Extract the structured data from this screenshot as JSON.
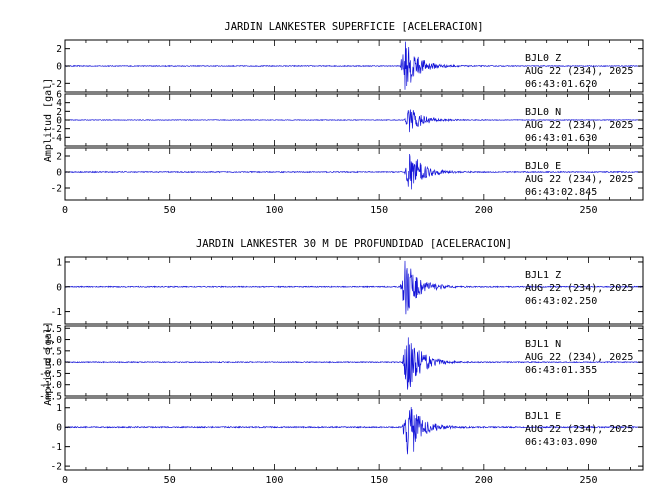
{
  "trace_color": "#1414d8",
  "chart_data": [
    {
      "type": "line",
      "title": "JARDIN LANKESTER SUPERFICIE [ACELERACION]",
      "ylabel": "Amplitud [gal]",
      "xlabel": "",
      "xlim": [
        0,
        276
      ],
      "xticks": [
        "0",
        "50",
        "100",
        "150",
        "200",
        "250"
      ],
      "series": [
        {
          "name": "BJL0  Z",
          "date": "AUG 22 (234), 2025",
          "time": "06:43:01.620",
          "ylim": [
            -3,
            3
          ],
          "yticks": [
            "2",
            "0",
            "-2"
          ],
          "onset_s": 160,
          "peak_gal": 2.9,
          "noise_gal": 0.05
        },
        {
          "name": "BJL0  N",
          "date": "AUG 22 (234), 2025",
          "time": "06:43:01.630",
          "ylim": [
            -6,
            6
          ],
          "yticks": [
            "6",
            "4",
            "2",
            "0",
            "-2",
            "-4"
          ],
          "onset_s": 162,
          "peak_gal": 3.0,
          "noise_gal": 0.08
        },
        {
          "name": "BJL0  E",
          "date": "AUG 22 (234), 2025",
          "time": "06:43:02.845",
          "ylim": [
            -3.5,
            3
          ],
          "yticks": [
            "2",
            "0",
            "-2"
          ],
          "onset_s": 162,
          "peak_gal": 2.6,
          "noise_gal": 0.06
        }
      ]
    },
    {
      "type": "line",
      "title": "JARDIN LANKESTER 30 M DE PROFUNDIDAD [ACELERACION]",
      "ylabel": "Amplitud [gal]",
      "xlabel": "",
      "xlim": [
        0,
        276
      ],
      "xticks": [
        "0",
        "50",
        "100",
        "150",
        "200",
        "250"
      ],
      "series": [
        {
          "name": "BJL1  Z",
          "date": "AUG 22 (234), 2025",
          "time": "06:43:02.250",
          "ylim": [
            -1.5,
            1.2
          ],
          "yticks": [
            "1",
            "0",
            "-1"
          ],
          "onset_s": 160,
          "peak_gal": 1.2,
          "noise_gal": 0.02
        },
        {
          "name": "BJL1  N",
          "date": "AUG 22 (234), 2025",
          "time": "06:43:01.355",
          "ylim": [
            -1.5,
            1.6
          ],
          "yticks": [
            "1.5",
            "1.0",
            "0.5",
            "0.0",
            "-0.5",
            "-1.0",
            "-1.5"
          ],
          "onset_s": 161,
          "peak_gal": 1.4,
          "noise_gal": 0.02
        },
        {
          "name": "BJL1  E",
          "date": "AUG 22 (234), 2025",
          "time": "06:43:03.090",
          "ylim": [
            -2.2,
            1.5
          ],
          "yticks": [
            "1",
            "0",
            "-1",
            "-2"
          ],
          "onset_s": 161,
          "peak_gal": 1.5,
          "noise_gal": 0.03
        }
      ]
    }
  ]
}
